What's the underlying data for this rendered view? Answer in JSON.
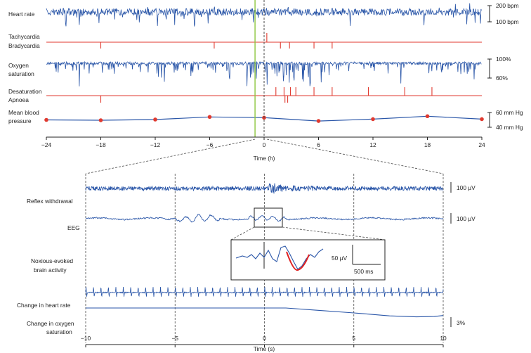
{
  "colors": {
    "trace": "#2a56a8",
    "event": "#e03a2f",
    "marker": "#e03a2f",
    "stimulus": "#8dc63f",
    "axis": "#222222",
    "dashed": "#4a4a4a",
    "fit": "#e02020"
  },
  "top_panel": {
    "rows": {
      "heart_rate": "Heart rate",
      "tachycardia": "Tachycardia",
      "bradycardia": "Bradycardia",
      "oxygen_line1": "Oxygen",
      "oxygen_line2": "saturation",
      "desaturation": "Desaturation",
      "apnoea": "Apnoea",
      "map_line1": "Mean blood",
      "map_line2": "pressure"
    },
    "scales": {
      "hr_high": "200 bpm",
      "hr_low": "100 bpm",
      "spo2_high": "100%",
      "spo2_low": "60%",
      "map_high": "60 mm Hg",
      "map_low": "40 mm Hg"
    },
    "xlabel": "Time (h)"
  },
  "bottom_panel": {
    "rows": {
      "reflex": "Reflex withdrawal",
      "eeg": "EEG",
      "noxious_line1": "Noxious-evoked",
      "noxious_line2": "brain activity",
      "hr_change": "Change in heart rate",
      "spo2_line1": "Change in oxygen",
      "spo2_line2": "saturation"
    },
    "scales": {
      "emg": "100 µV",
      "eeg": "100 µV",
      "inset_amp": "50 µV",
      "inset_time": "500 ms",
      "spo2": "3%"
    },
    "xlabel": "Time (s)"
  },
  "chart_data": [
    {
      "type": "line",
      "panel": "top",
      "xlabel": "Time (h)",
      "xlim": [
        -24,
        24
      ],
      "xticks": [
        "−24",
        "−18",
        "−12",
        "−6",
        "0",
        "6",
        "12",
        "18",
        "24"
      ],
      "xtick_values": [
        -24,
        -18,
        -12,
        -6,
        0,
        6,
        12,
        18,
        24
      ],
      "stimulus_time": -1,
      "series": [
        {
          "name": "Mean blood pressure",
          "unit": "mm Hg",
          "x": [
            -24,
            -18,
            -12,
            -6,
            0,
            6,
            12,
            18,
            24
          ],
          "values": [
            50,
            49.5,
            50.5,
            54,
            53,
            48.5,
            51,
            55,
            51
          ]
        }
      ],
      "events": {
        "Tachycardia": [
          0.3
        ],
        "Bradycardia": [
          -18,
          -5.5,
          1.8,
          2.8,
          5.5,
          7.5
        ],
        "Desaturation": [
          1.3,
          2.2,
          2.9,
          3.5,
          5.5,
          7.5,
          11.5,
          15.5,
          18.5
        ],
        "Apnoea": [
          -18,
          2.3,
          2.6
        ]
      }
    },
    {
      "type": "line",
      "panel": "bottom",
      "xlabel": "Time (s)",
      "xlim": [
        -10,
        10
      ],
      "xticks": [
        "−10",
        "−5",
        "0",
        "5",
        "10"
      ],
      "xtick_values": [
        -10,
        -5,
        0,
        5,
        10
      ],
      "series": [
        {
          "name": "Change in oxygen saturation",
          "unit": "%",
          "x": [
            -10,
            1.2,
            3,
            5,
            7,
            8.5,
            9.5,
            10
          ],
          "values": [
            0,
            0,
            -0.7,
            -1.5,
            -2.4,
            -2.7,
            -2.6,
            -2.3
          ]
        }
      ]
    }
  ]
}
